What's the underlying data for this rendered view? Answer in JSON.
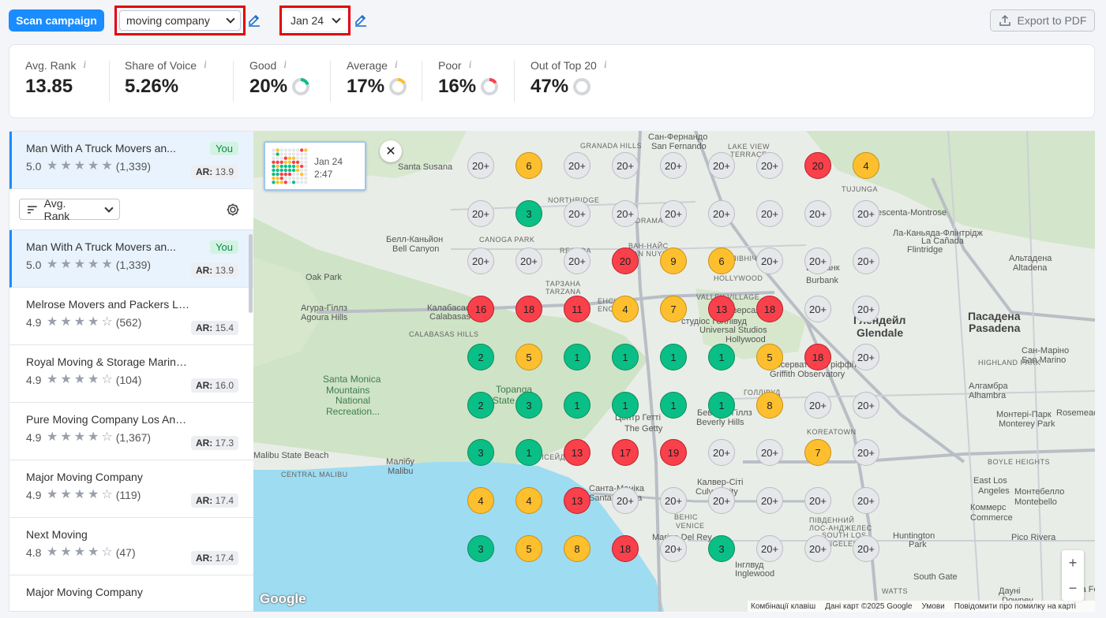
{
  "toolbar": {
    "scan_label": "Scan campaign",
    "keyword": "moving company",
    "date": "Jan 24",
    "export_label": "Export to PDF"
  },
  "stats": [
    {
      "label": "Avg. Rank",
      "value": "13.85"
    },
    {
      "label": "Share of Voice",
      "value": "5.26%"
    },
    {
      "label": "Good",
      "value": "20%",
      "donut_fraction": 0.2,
      "donut_color": "#0abf86"
    },
    {
      "label": "Average",
      "value": "17%",
      "donut_fraction": 0.17,
      "donut_color": "#fdbf2d"
    },
    {
      "label": "Poor",
      "value": "16%",
      "donut_fraction": 0.16,
      "donut_color": "#f9404b"
    },
    {
      "label": "Out of Top 20",
      "value": "47%",
      "donut_fraction": 0.47,
      "donut_color": "#d5d7dc"
    }
  ],
  "info_glyph": "i",
  "pinned": {
    "name": "Man With A Truck Movers an...",
    "badge": "You",
    "rating": "5.0",
    "stars": 5,
    "reviews": "(1,339)",
    "ar_label": "AR:",
    "ar_value": "13.9"
  },
  "sort": {
    "label": "Avg. Rank"
  },
  "businesses": [
    {
      "name": "Man With A Truck Movers an...",
      "badge": "You",
      "rating": "5.0",
      "stars": 5,
      "reviews": "(1,339)",
      "ar_label": "AR:",
      "ar_value": "13.9",
      "selected": true
    },
    {
      "name": "Melrose Movers and Packers Los A...",
      "badge": "",
      "rating": "4.9",
      "stars": 4,
      "reviews": "(562)",
      "ar_label": "AR:",
      "ar_value": "15.4"
    },
    {
      "name": "Royal Moving & Storage Marina Del ...",
      "badge": "",
      "rating": "4.9",
      "stars": 4,
      "reviews": "(104)",
      "ar_label": "AR:",
      "ar_value": "16.0"
    },
    {
      "name": "Pure Moving Company Los Angeles...",
      "badge": "",
      "rating": "4.9",
      "stars": 4,
      "reviews": "(1,367)",
      "ar_label": "AR:",
      "ar_value": "17.3"
    },
    {
      "name": "Major Moving Company",
      "badge": "",
      "rating": "4.9",
      "stars": 4,
      "reviews": "(119)",
      "ar_label": "AR:",
      "ar_value": "17.4"
    },
    {
      "name": "Next Moving",
      "badge": "",
      "rating": "4.8",
      "stars": 4,
      "reviews": "(47)",
      "ar_label": "AR:",
      "ar_value": "17.4"
    },
    {
      "name": "Major Moving Company",
      "badge": "",
      "rating": "",
      "stars": 0,
      "reviews": "",
      "ar_label": "",
      "ar_value": ""
    }
  ],
  "map": {
    "thumb_date": "Jan 24",
    "thumb_time": "2:47",
    "close_glyph": "✕",
    "zoom_in": "+",
    "zoom_out": "−",
    "google": "Google",
    "attribution": [
      "Комбінації клавіш",
      "Дані карт ©2025 Google",
      "Умови",
      "Повідомити про помилку на карті"
    ],
    "grid": [
      [
        "20+",
        "6",
        "20+",
        "20+",
        "20+",
        "20+",
        "20+",
        "20",
        "4"
      ],
      [
        "20+",
        "3",
        "20+",
        "20+",
        "20+",
        "20+",
        "20+",
        "20+",
        "20+"
      ],
      [
        "20+",
        "20+",
        "20+",
        "20",
        "9",
        "6",
        "20+",
        "20+",
        "20+"
      ],
      [
        "16",
        "18",
        "11",
        "4",
        "7",
        "13",
        "18",
        "20+",
        "20+"
      ],
      [
        "2",
        "5",
        "1",
        "1",
        "1",
        "1",
        "5",
        "18",
        "20+"
      ],
      [
        "2",
        "3",
        "1",
        "1",
        "1",
        "1",
        "8",
        "20+",
        "20+"
      ],
      [
        "3",
        "1",
        "13",
        "17",
        "19",
        "20+",
        "20+",
        "7",
        "20+"
      ],
      [
        "4",
        "4",
        "13",
        "20+",
        "20+",
        "20+",
        "20+",
        "20+",
        "20+"
      ],
      [
        "3",
        "5",
        "8",
        "18",
        "20+",
        "3",
        "20+",
        "20+",
        "20+"
      ]
    ],
    "labels": [
      {
        "t": "Сан-Фернандо",
        "c": ""
      },
      {
        "t": "San Fernando",
        "c": ""
      },
      {
        "t": "GRANADA HILLS",
        "c": "caps"
      },
      {
        "t": "LAKE VIEW",
        "c": "caps"
      },
      {
        "t": "TERRACE",
        "c": "caps"
      },
      {
        "t": "Santa Susana",
        "c": ""
      },
      {
        "t": "TUJUNGA",
        "c": "caps"
      },
      {
        "t": "La Crescenta-Montrose",
        "c": ""
      },
      {
        "t": "NORTHRIDGE",
        "c": "caps"
      },
      {
        "t": "PANORAMA CITY",
        "c": "caps"
      },
      {
        "t": "CANOGA PARK",
        "c": "caps"
      },
      {
        "t": "Белл-Каньйон",
        "c": ""
      },
      {
        "t": "Bell Canyon",
        "c": ""
      },
      {
        "t": "RESEDA",
        "c": "caps"
      },
      {
        "t": "ВАН-НАЙС",
        "c": "caps"
      },
      {
        "t": "VAN NUYS",
        "c": "caps"
      },
      {
        "t": "ПІВНІЧНИЙ",
        "c": "caps"
      },
      {
        "t": "HOLLYWOOD",
        "c": "caps"
      },
      {
        "t": "Бербанк",
        "c": ""
      },
      {
        "t": "Burbank",
        "c": ""
      },
      {
        "t": "Ла-Каньяда-Флінтрідж",
        "c": ""
      },
      {
        "t": "La Cañada",
        "c": ""
      },
      {
        "t": "Flintridge",
        "c": ""
      },
      {
        "t": "Альтадена",
        "c": ""
      },
      {
        "t": "Altadena",
        "c": ""
      },
      {
        "t": "Oak Park",
        "c": ""
      },
      {
        "t": "ТАРЗАНА",
        "c": "caps"
      },
      {
        "t": "TARZANA",
        "c": "caps"
      },
      {
        "t": "ЕНСІНО",
        "c": "caps"
      },
      {
        "t": "ENCINO",
        "c": "caps"
      },
      {
        "t": "VALLEY VILLAGE",
        "c": "caps"
      },
      {
        "t": "Агура-Гіллз",
        "c": ""
      },
      {
        "t": "Agoura Hills",
        "c": ""
      },
      {
        "t": "Калабасас",
        "c": ""
      },
      {
        "t": "Calabasas",
        "c": ""
      },
      {
        "t": "CALABASAS HILLS",
        "c": "caps"
      },
      {
        "t": "Юніверсал",
        "c": ""
      },
      {
        "t": "студіос Голлівуд",
        "c": ""
      },
      {
        "t": "Universal Studios",
        "c": ""
      },
      {
        "t": "Hollywood",
        "c": ""
      },
      {
        "t": "Глендейл",
        "c": "big"
      },
      {
        "t": "Glendale",
        "c": "big"
      },
      {
        "t": "Пасадена",
        "c": "big"
      },
      {
        "t": "Pasadena",
        "c": "big"
      },
      {
        "t": "Сан-Маріно",
        "c": ""
      },
      {
        "t": "San Marino",
        "c": ""
      },
      {
        "t": "HIGHLAND PARK",
        "c": "caps"
      },
      {
        "t": "Обсерваторія Гріффіта",
        "c": ""
      },
      {
        "t": "Griffith Observatory",
        "c": ""
      },
      {
        "t": "Santa Monica",
        "c": "pk"
      },
      {
        "t": "Mountains",
        "c": "pk"
      },
      {
        "t": "National",
        "c": "pk"
      },
      {
        "t": "Recreation...",
        "c": "pk"
      },
      {
        "t": "Topanga",
        "c": "pk"
      },
      {
        "t": "State",
        "c": "pk"
      },
      {
        "t": "ГОЛЛІВУД",
        "c": "caps"
      },
      {
        "t": "Беверлі-Гіллз",
        "c": ""
      },
      {
        "t": "Beverly Hills",
        "c": ""
      },
      {
        "t": "Центр Гетті",
        "c": ""
      },
      {
        "t": "The Getty",
        "c": ""
      },
      {
        "t": "KOREATOWN",
        "c": "caps"
      },
      {
        "t": "Алгамбра",
        "c": ""
      },
      {
        "t": "Alhambra",
        "c": ""
      },
      {
        "t": "Монтері-Парк",
        "c": ""
      },
      {
        "t": "Monterey Park",
        "c": ""
      },
      {
        "t": "Rosemead",
        "c": ""
      },
      {
        "t": "Malibu State Beach",
        "c": ""
      },
      {
        "t": "Малібу",
        "c": ""
      },
      {
        "t": "Malibu",
        "c": ""
      },
      {
        "t": "CENTRAL MALIBU",
        "c": "caps"
      },
      {
        "t": "ПАЛІСЕЙДС",
        "c": "caps"
      },
      {
        "t": "BOYLE HEIGHTS",
        "c": "caps"
      },
      {
        "t": "Санта-Моніка",
        "c": ""
      },
      {
        "t": "Santa Monica",
        "c": ""
      },
      {
        "t": "Калвер-Сіті",
        "c": ""
      },
      {
        "t": "Culver City",
        "c": ""
      },
      {
        "t": "East Los",
        "c": ""
      },
      {
        "t": "Angeles",
        "c": ""
      },
      {
        "t": "Монтебелло",
        "c": ""
      },
      {
        "t": "Montebello",
        "c": ""
      },
      {
        "t": "Коммерс",
        "c": ""
      },
      {
        "t": "Commerce",
        "c": ""
      },
      {
        "t": "ВЕНІС",
        "c": "caps"
      },
      {
        "t": "VENICE",
        "c": "caps"
      },
      {
        "t": "ПІВДЕННИЙ",
        "c": "caps"
      },
      {
        "t": "ЛОС-АНДЖЕЛЕС",
        "c": "caps"
      },
      {
        "t": "SOUTH LOS",
        "c": "caps"
      },
      {
        "t": "ANGELES",
        "c": "caps"
      },
      {
        "t": "Huntington",
        "c": ""
      },
      {
        "t": "Park",
        "c": ""
      },
      {
        "t": "Pico Rivera",
        "c": ""
      },
      {
        "t": "Marina Del Rey",
        "c": ""
      },
      {
        "t": "Інглвуд",
        "c": ""
      },
      {
        "t": "Inglewood",
        "c": ""
      },
      {
        "t": "South Gate",
        "c": ""
      },
      {
        "t": "WATTS",
        "c": "caps"
      },
      {
        "t": "Дауні",
        "c": ""
      },
      {
        "t": "Downey",
        "c": ""
      },
      {
        "t": "Santa Fe Springs",
        "c": ""
      }
    ]
  }
}
